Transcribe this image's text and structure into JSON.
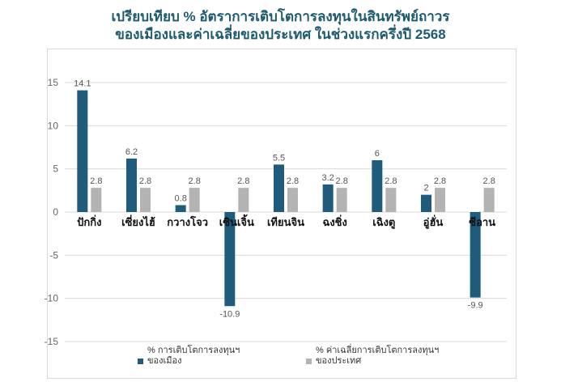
{
  "title_line1": "เปรียบเทียบ % อัตราการเติบโตการลงทุนในสินทรัพย์ถาวร",
  "title_line2": "ของเมืองและค่าเฉลี่ยของประเทศ ในช่วงแรกครึ่งปี 2568",
  "chart_data": {
    "type": "bar",
    "title": "เปรียบเทียบ % อัตราการเติบโตการลงทุนในสินทรัพย์ถาวร ของเมืองและค่าเฉลี่ยของประเทศ ในช่วงแรกครึ่งปี 2568",
    "categories": [
      "ปักกิ่ง",
      "เซี่ยงไฮ้",
      "กวางโจว",
      "เซินเจิ้น",
      "เทียนจิน",
      "ฉงชิ่ง",
      "เฉิงตู",
      "อู่ฮั่น",
      "ซีอาน"
    ],
    "series": [
      {
        "name": "% การเติบโตการลงทุนฯ ของเมือง",
        "values": [
          14.1,
          6.2,
          0.8,
          -10.9,
          5.5,
          3.2,
          6,
          2,
          -9.9
        ],
        "labels": [
          "14.1",
          "6.2",
          "0.8",
          "-10.9",
          "5.5",
          "3.2",
          "6",
          "2",
          "-9.9"
        ],
        "color": "#1f5b7a"
      },
      {
        "name": "% ค่าเฉลี่ยการเติบโตการลงทุนฯ ของประเทศ",
        "values": [
          2.8,
          2.8,
          2.8,
          2.8,
          2.8,
          2.8,
          2.8,
          2.8,
          2.8
        ],
        "labels": [
          "2.8",
          "2.8",
          "2.8",
          "2.8",
          "2.8",
          "2.8",
          "2.8",
          "2.8",
          "2.8"
        ],
        "color": "#b3b3b3"
      }
    ],
    "legend_lines": [
      [
        "% การเติบโตการลงทุนฯ",
        "ของเมือง"
      ],
      [
        "% ค่าเฉลี่ยการเติบโตการลงทุนฯ",
        "ของประเทศ"
      ]
    ],
    "yticks": [
      "15",
      "10",
      "5",
      "0",
      "-5",
      "-10",
      "-15"
    ],
    "ylim": [
      -15,
      15
    ],
    "grid": true,
    "legend_position": "bottom"
  }
}
